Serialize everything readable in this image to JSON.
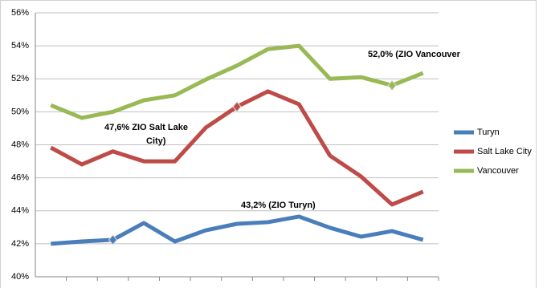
{
  "chart_data": {
    "type": "line",
    "categories": [
      null,
      null,
      null,
      null,
      null,
      null,
      null,
      null,
      null,
      null,
      null,
      null,
      null
    ],
    "series": [
      {
        "name": "Turyn",
        "color": "#4a7ebb",
        "values": [
          42.0,
          42.14,
          42.24,
          43.26,
          42.14,
          42.82,
          43.21,
          43.31,
          43.65,
          42.97,
          42.43,
          42.77,
          42.24
        ]
      },
      {
        "name": "Salt Lake City",
        "color": "#be4b48",
        "values": [
          47.83,
          46.81,
          47.6,
          47.0,
          47.0,
          49.05,
          50.31,
          51.24,
          50.46,
          47.34,
          46.08,
          44.38,
          45.16
        ]
      },
      {
        "name": "Vancouver",
        "color": "#98b954",
        "values": [
          50.4,
          49.63,
          50.0,
          50.7,
          51.0,
          51.96,
          52.8,
          53.8,
          54.0,
          52.0,
          52.1,
          51.6,
          52.35
        ]
      }
    ],
    "ylim": [
      40,
      56
    ],
    "yticks": [
      {
        "value": 40,
        "label": "40%"
      },
      {
        "value": 42,
        "label": "42%"
      },
      {
        "value": 44,
        "label": "44%"
      },
      {
        "value": 46,
        "label": "46%"
      },
      {
        "value": 48,
        "label": "48%"
      },
      {
        "value": 50,
        "label": "50%"
      },
      {
        "value": 52,
        "label": "52%"
      },
      {
        "value": 54,
        "label": "54%"
      },
      {
        "value": 56,
        "label": "56%"
      }
    ],
    "grid": true,
    "legend": "right",
    "annotations": [
      {
        "lines": [
          "43,2% (ZIO Turyn)"
        ],
        "color": "#1f6fb0"
      },
      {
        "lines": [
          "47,6% ZIO Salt  Lake",
          "City)"
        ],
        "color": "#a5292a"
      },
      {
        "lines": [
          "52,0% (ZIO Vancouver"
        ],
        "color": "#6f9a2b"
      }
    ]
  }
}
